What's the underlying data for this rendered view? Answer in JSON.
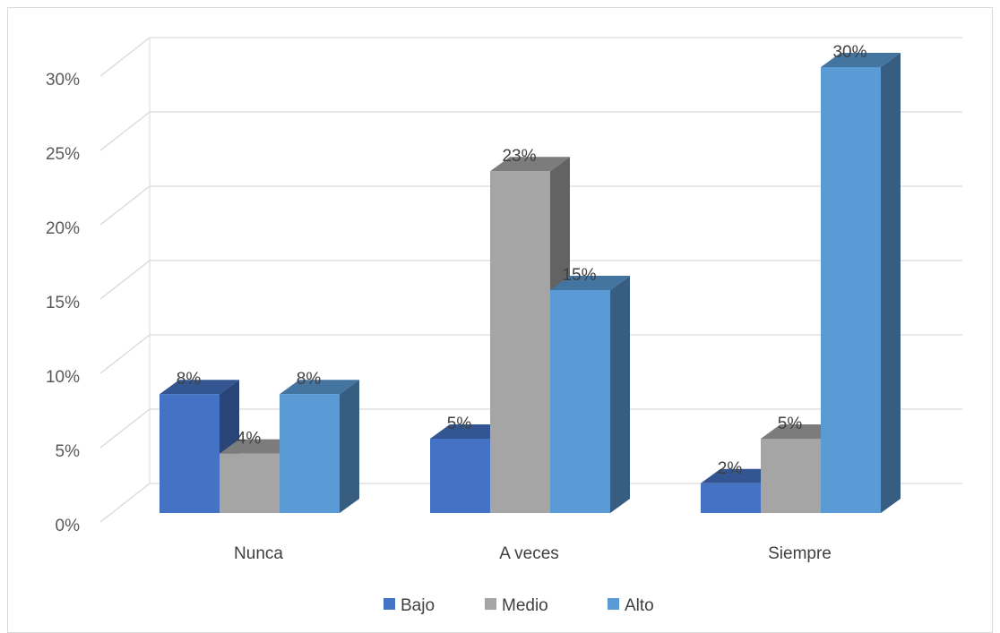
{
  "chart_data": {
    "type": "bar",
    "categories": [
      "Nunca",
      "A veces",
      "Siempre"
    ],
    "series": [
      {
        "name": "Bajo",
        "values": [
          8,
          5,
          2
        ],
        "color": "#4472C4"
      },
      {
        "name": "Medio",
        "values": [
          4,
          23,
          5
        ],
        "color": "#A5A5A5"
      },
      {
        "name": "Alto",
        "values": [
          8,
          15,
          30
        ],
        "color": "#5B9BD5"
      }
    ],
    "data_labels": [
      [
        "8%",
        "5%",
        "2%"
      ],
      [
        "4%",
        "23%",
        "5%"
      ],
      [
        "8%",
        "15%",
        "30%"
      ]
    ],
    "yticks": [
      "0%",
      "5%",
      "10%",
      "15%",
      "20%",
      "25%",
      "30%"
    ],
    "ylim": [
      0,
      30
    ],
    "title": "",
    "xlabel": "",
    "ylabel": "",
    "grid": true,
    "legend_position": "bottom",
    "style": "3d-clustered-column"
  }
}
